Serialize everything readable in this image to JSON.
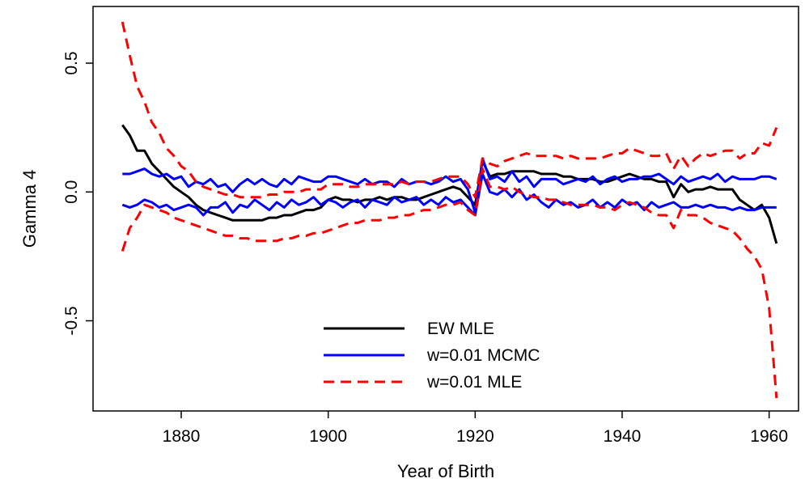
{
  "chart_data": {
    "type": "line",
    "title": "",
    "xlabel": "Year of Birth",
    "ylabel": "Gamma 4",
    "xlim": [
      1868,
      1964
    ],
    "ylim": [
      -0.85,
      0.72
    ],
    "xticks": [
      1880,
      1900,
      1920,
      1940,
      1960
    ],
    "yticks": [
      -0.5,
      0.0,
      0.5
    ],
    "ytick_labels": [
      "-0.5",
      "0.0",
      "0.5"
    ],
    "grid": false,
    "legend_position": "bottom-center",
    "legend": [
      {
        "label": "EW MLE",
        "color": "#000000",
        "style": "solid"
      },
      {
        "label": "w=0.01 MCMC",
        "color": "#0000ff",
        "style": "solid"
      },
      {
        "label": "w=0.01 MLE",
        "color": "#ff0000",
        "style": "dashed"
      }
    ],
    "series": [
      {
        "id": "ew-mle",
        "color": "#000000",
        "style": "solid",
        "x": [
          1872,
          1873,
          1874,
          1875,
          1876,
          1877,
          1878,
          1879,
          1880,
          1881,
          1882,
          1883,
          1884,
          1885,
          1886,
          1887,
          1888,
          1889,
          1890,
          1891,
          1892,
          1893,
          1894,
          1895,
          1896,
          1897,
          1898,
          1899,
          1900,
          1901,
          1902,
          1903,
          1904,
          1905,
          1906,
          1907,
          1908,
          1909,
          1910,
          1911,
          1912,
          1913,
          1914,
          1915,
          1916,
          1917,
          1918,
          1919,
          1920,
          1921,
          1922,
          1923,
          1924,
          1925,
          1926,
          1927,
          1928,
          1929,
          1930,
          1931,
          1932,
          1933,
          1934,
          1935,
          1936,
          1937,
          1938,
          1939,
          1940,
          1941,
          1942,
          1943,
          1944,
          1945,
          1946,
          1947,
          1948,
          1949,
          1950,
          1951,
          1952,
          1953,
          1954,
          1955,
          1956,
          1957,
          1958,
          1959,
          1960,
          1961
        ],
        "y": [
          0.26,
          0.22,
          0.16,
          0.16,
          0.11,
          0.08,
          0.05,
          0.02,
          0.0,
          -0.02,
          -0.05,
          -0.07,
          -0.08,
          -0.09,
          -0.1,
          -0.11,
          -0.11,
          -0.11,
          -0.11,
          -0.11,
          -0.1,
          -0.1,
          -0.09,
          -0.09,
          -0.08,
          -0.07,
          -0.07,
          -0.06,
          -0.03,
          -0.02,
          -0.03,
          -0.03,
          -0.04,
          -0.03,
          -0.03,
          -0.02,
          -0.03,
          -0.02,
          -0.02,
          -0.03,
          -0.03,
          -0.02,
          -0.01,
          0.0,
          0.01,
          0.02,
          0.01,
          -0.02,
          -0.05,
          0.12,
          0.06,
          0.07,
          0.07,
          0.08,
          0.08,
          0.08,
          0.08,
          0.07,
          0.07,
          0.07,
          0.06,
          0.06,
          0.05,
          0.05,
          0.05,
          0.04,
          0.04,
          0.05,
          0.06,
          0.07,
          0.06,
          0.05,
          0.05,
          0.04,
          0.04,
          -0.02,
          0.03,
          0.0,
          0.01,
          0.01,
          0.02,
          0.01,
          0.01,
          0.01,
          -0.03,
          -0.05,
          -0.07,
          -0.05,
          -0.1,
          -0.2
        ]
      },
      {
        "id": "mcmc-upper",
        "color": "#0000ff",
        "style": "solid",
        "x": [
          1872,
          1873,
          1874,
          1875,
          1876,
          1877,
          1878,
          1879,
          1880,
          1881,
          1882,
          1883,
          1884,
          1885,
          1886,
          1887,
          1888,
          1889,
          1890,
          1891,
          1892,
          1893,
          1894,
          1895,
          1896,
          1897,
          1898,
          1899,
          1900,
          1901,
          1902,
          1903,
          1904,
          1905,
          1906,
          1907,
          1908,
          1909,
          1910,
          1911,
          1912,
          1913,
          1914,
          1915,
          1916,
          1917,
          1918,
          1919,
          1920,
          1921,
          1922,
          1923,
          1924,
          1925,
          1926,
          1927,
          1928,
          1929,
          1930,
          1931,
          1932,
          1933,
          1934,
          1935,
          1936,
          1937,
          1938,
          1939,
          1940,
          1941,
          1942,
          1943,
          1944,
          1945,
          1946,
          1947,
          1948,
          1949,
          1950,
          1951,
          1952,
          1953,
          1954,
          1955,
          1956,
          1957,
          1958,
          1959,
          1960,
          1961
        ],
        "y": [
          0.07,
          0.07,
          0.08,
          0.09,
          0.07,
          0.06,
          0.07,
          0.05,
          0.06,
          0.02,
          0.04,
          0.03,
          0.05,
          0.02,
          0.03,
          0.0,
          0.03,
          0.05,
          0.03,
          0.05,
          0.03,
          0.02,
          0.05,
          0.03,
          0.06,
          0.05,
          0.04,
          0.04,
          0.06,
          0.06,
          0.05,
          0.04,
          0.03,
          0.05,
          0.03,
          0.04,
          0.04,
          0.02,
          0.05,
          0.03,
          0.04,
          0.04,
          0.03,
          0.04,
          0.06,
          0.04,
          0.05,
          0.01,
          -0.08,
          0.13,
          0.05,
          0.06,
          0.04,
          0.08,
          0.04,
          0.06,
          0.02,
          0.05,
          0.05,
          0.05,
          0.03,
          0.04,
          0.05,
          0.04,
          0.06,
          0.03,
          0.05,
          0.06,
          0.04,
          0.05,
          0.05,
          0.06,
          0.06,
          0.07,
          0.05,
          0.03,
          0.06,
          0.04,
          0.05,
          0.06,
          0.05,
          0.07,
          0.04,
          0.06,
          0.05,
          0.05,
          0.05,
          0.06,
          0.06,
          0.05
        ]
      },
      {
        "id": "mcmc-lower",
        "color": "#0000ff",
        "style": "solid",
        "x": [
          1872,
          1873,
          1874,
          1875,
          1876,
          1877,
          1878,
          1879,
          1880,
          1881,
          1882,
          1883,
          1884,
          1885,
          1886,
          1887,
          1888,
          1889,
          1890,
          1891,
          1892,
          1893,
          1894,
          1895,
          1896,
          1897,
          1898,
          1899,
          1900,
          1901,
          1902,
          1903,
          1904,
          1905,
          1906,
          1907,
          1908,
          1909,
          1910,
          1911,
          1912,
          1913,
          1914,
          1915,
          1916,
          1917,
          1918,
          1919,
          1920,
          1921,
          1922,
          1923,
          1924,
          1925,
          1926,
          1927,
          1928,
          1929,
          1930,
          1931,
          1932,
          1933,
          1934,
          1935,
          1936,
          1937,
          1938,
          1939,
          1940,
          1941,
          1942,
          1943,
          1944,
          1945,
          1946,
          1947,
          1948,
          1949,
          1950,
          1951,
          1952,
          1953,
          1954,
          1955,
          1956,
          1957,
          1958,
          1959,
          1960,
          1961
        ],
        "y": [
          -0.05,
          -0.06,
          -0.05,
          -0.03,
          -0.04,
          -0.06,
          -0.05,
          -0.07,
          -0.06,
          -0.05,
          -0.06,
          -0.09,
          -0.06,
          -0.06,
          -0.04,
          -0.08,
          -0.05,
          -0.06,
          -0.03,
          -0.05,
          -0.07,
          -0.04,
          -0.06,
          -0.03,
          -0.05,
          -0.04,
          -0.02,
          -0.05,
          -0.03,
          -0.04,
          -0.06,
          -0.04,
          -0.03,
          -0.06,
          -0.03,
          -0.04,
          -0.05,
          -0.02,
          -0.04,
          -0.03,
          -0.02,
          -0.05,
          -0.03,
          -0.05,
          -0.02,
          -0.04,
          -0.03,
          -0.06,
          -0.09,
          0.07,
          0.0,
          -0.01,
          0.01,
          -0.02,
          0.01,
          -0.03,
          -0.01,
          -0.04,
          -0.06,
          -0.03,
          -0.05,
          -0.04,
          -0.06,
          -0.05,
          -0.03,
          -0.06,
          -0.04,
          -0.06,
          -0.03,
          -0.05,
          -0.04,
          -0.07,
          -0.04,
          -0.06,
          -0.05,
          -0.04,
          -0.06,
          -0.06,
          -0.05,
          -0.06,
          -0.05,
          -0.06,
          -0.06,
          -0.07,
          -0.06,
          -0.07,
          -0.07,
          -0.06,
          -0.06,
          -0.06
        ]
      },
      {
        "id": "mle-upper",
        "color": "#ff0000",
        "style": "dashed",
        "x": [
          1872,
          1873,
          1874,
          1875,
          1876,
          1877,
          1878,
          1879,
          1880,
          1881,
          1882,
          1883,
          1884,
          1885,
          1886,
          1887,
          1888,
          1889,
          1890,
          1891,
          1892,
          1893,
          1894,
          1895,
          1896,
          1897,
          1898,
          1899,
          1900,
          1901,
          1902,
          1903,
          1904,
          1905,
          1906,
          1907,
          1908,
          1909,
          1910,
          1911,
          1912,
          1913,
          1914,
          1915,
          1916,
          1917,
          1918,
          1919,
          1920,
          1921,
          1922,
          1923,
          1924,
          1925,
          1926,
          1927,
          1928,
          1929,
          1930,
          1931,
          1932,
          1933,
          1934,
          1935,
          1936,
          1937,
          1938,
          1939,
          1940,
          1941,
          1942,
          1943,
          1944,
          1945,
          1946,
          1947,
          1948,
          1949,
          1950,
          1951,
          1952,
          1953,
          1954,
          1955,
          1956,
          1957,
          1958,
          1959,
          1960,
          1961
        ],
        "y": [
          0.66,
          0.53,
          0.41,
          0.35,
          0.27,
          0.23,
          0.17,
          0.14,
          0.1,
          0.08,
          0.04,
          0.02,
          0.01,
          0.0,
          -0.01,
          -0.01,
          -0.02,
          -0.02,
          -0.02,
          -0.02,
          -0.01,
          -0.01,
          0.0,
          0.0,
          0.0,
          0.01,
          0.01,
          0.01,
          0.03,
          0.03,
          0.03,
          0.02,
          0.02,
          0.03,
          0.03,
          0.03,
          0.03,
          0.03,
          0.04,
          0.03,
          0.04,
          0.04,
          0.04,
          0.05,
          0.06,
          0.06,
          0.06,
          0.03,
          -0.02,
          0.13,
          0.11,
          0.1,
          0.12,
          0.13,
          0.14,
          0.15,
          0.14,
          0.14,
          0.14,
          0.14,
          0.13,
          0.14,
          0.13,
          0.13,
          0.13,
          0.13,
          0.14,
          0.15,
          0.15,
          0.17,
          0.16,
          0.15,
          0.14,
          0.14,
          0.15,
          0.09,
          0.14,
          0.1,
          0.13,
          0.15,
          0.14,
          0.15,
          0.16,
          0.16,
          0.13,
          0.15,
          0.15,
          0.19,
          0.18,
          0.25
        ]
      },
      {
        "id": "mle-lower",
        "color": "#ff0000",
        "style": "dashed",
        "x": [
          1872,
          1873,
          1874,
          1875,
          1876,
          1877,
          1878,
          1879,
          1880,
          1881,
          1882,
          1883,
          1884,
          1885,
          1886,
          1887,
          1888,
          1889,
          1890,
          1891,
          1892,
          1893,
          1894,
          1895,
          1896,
          1897,
          1898,
          1899,
          1900,
          1901,
          1902,
          1903,
          1904,
          1905,
          1906,
          1907,
          1908,
          1909,
          1910,
          1911,
          1912,
          1913,
          1914,
          1915,
          1916,
          1917,
          1918,
          1919,
          1920,
          1921,
          1922,
          1923,
          1924,
          1925,
          1926,
          1927,
          1928,
          1929,
          1930,
          1931,
          1932,
          1933,
          1934,
          1935,
          1936,
          1937,
          1938,
          1939,
          1940,
          1941,
          1942,
          1943,
          1944,
          1945,
          1946,
          1947,
          1948,
          1949,
          1950,
          1951,
          1952,
          1953,
          1954,
          1955,
          1956,
          1957,
          1958,
          1959,
          1960,
          1961
        ],
        "y": [
          -0.23,
          -0.14,
          -0.1,
          -0.05,
          -0.06,
          -0.07,
          -0.08,
          -0.1,
          -0.11,
          -0.12,
          -0.13,
          -0.14,
          -0.15,
          -0.16,
          -0.17,
          -0.17,
          -0.18,
          -0.18,
          -0.19,
          -0.19,
          -0.19,
          -0.19,
          -0.18,
          -0.18,
          -0.17,
          -0.17,
          -0.16,
          -0.16,
          -0.15,
          -0.14,
          -0.13,
          -0.12,
          -0.12,
          -0.11,
          -0.11,
          -0.11,
          -0.1,
          -0.1,
          -0.09,
          -0.09,
          -0.08,
          -0.07,
          -0.07,
          -0.06,
          -0.05,
          -0.05,
          -0.04,
          -0.07,
          -0.09,
          0.09,
          0.02,
          0.02,
          0.01,
          0.02,
          0.0,
          -0.01,
          -0.02,
          -0.02,
          -0.03,
          -0.03,
          -0.04,
          -0.05,
          -0.05,
          -0.05,
          -0.05,
          -0.06,
          -0.06,
          -0.07,
          -0.05,
          -0.04,
          -0.05,
          -0.06,
          -0.08,
          -0.09,
          -0.09,
          -0.14,
          -0.07,
          -0.09,
          -0.09,
          -0.1,
          -0.12,
          -0.13,
          -0.14,
          -0.15,
          -0.18,
          -0.22,
          -0.25,
          -0.3,
          -0.45,
          -0.8
        ]
      }
    ]
  }
}
